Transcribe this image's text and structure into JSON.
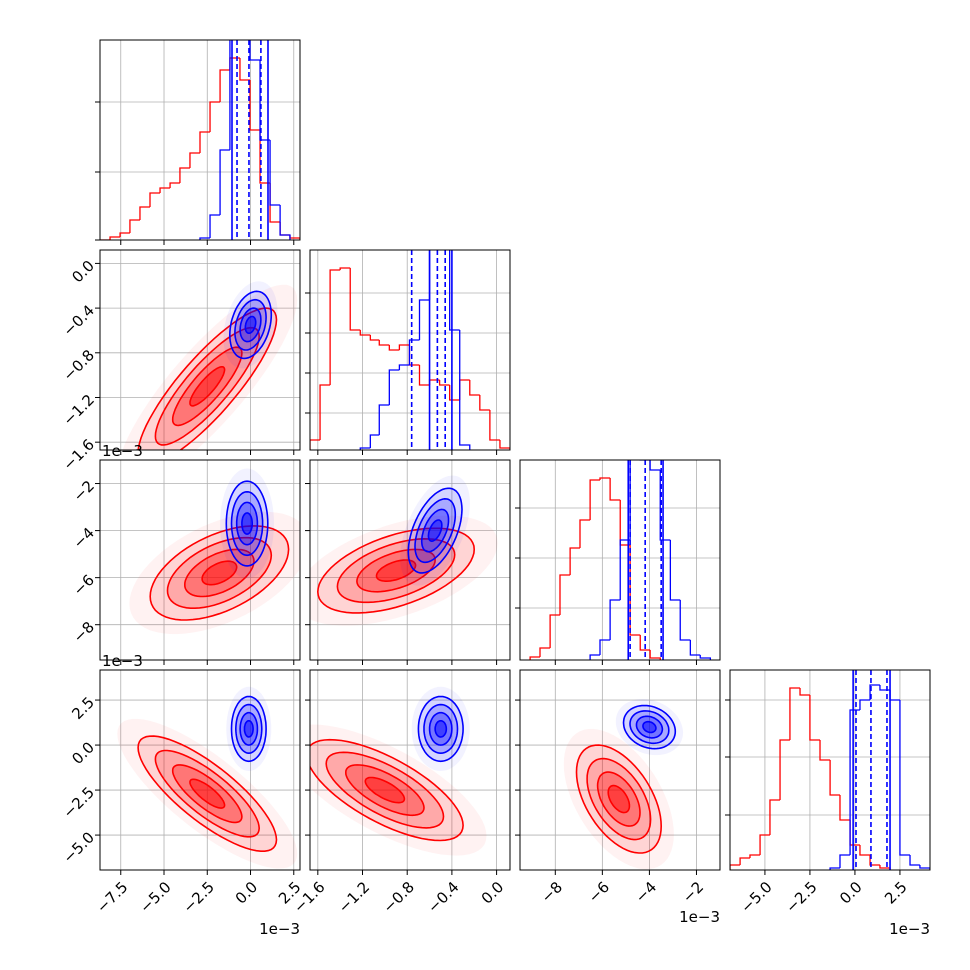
{
  "chart_data": {
    "type": "corner",
    "grid": true,
    "hist_ylim": [
      0,
      200
    ],
    "params": [
      {
        "lim": [
          -8.7,
          2.86
        ],
        "offset_label": "1e−3",
        "ticks": [
          {
            "value": -7.5,
            "label": "−7.5"
          },
          {
            "value": -5.0,
            "label": "−5.0"
          },
          {
            "value": -2.5,
            "label": "−2.5"
          },
          {
            "value": 0.0,
            "label": "0.0"
          },
          2.5
        ],
        "hist_yticks": [
          0,
          68,
          138
        ],
        "hists": [
          {
            "color": "#ff0000",
            "bins": [
              -8.7,
              -8.12,
              -7.54,
              -6.97,
              -6.39,
              -5.81,
              -5.23,
              -4.65,
              -4.08,
              -3.5,
              -2.92,
              -2.34,
              -1.76,
              -1.19,
              -0.61,
              -0.03,
              0.55,
              1.13,
              1.71,
              2.28,
              2.86
            ],
            "values": [
              0,
              3,
              7,
              20,
              33,
              47,
              52,
              57,
              72,
              87,
              108,
              138,
              170,
              182,
              160,
              110,
              57,
              18,
              5,
              2
            ]
          },
          {
            "color": "#0000ff",
            "bins": [
              -2.92,
              -2.34,
              -1.76,
              -1.19,
              -0.61,
              -0.03,
              0.55,
              1.13,
              1.71,
              2.28
            ],
            "values": [
              2,
              25,
              90,
              205,
              215,
              180,
              100,
              35,
              5
            ]
          }
        ],
        "lines": [
          {
            "color": "#0000ff",
            "style": "dashed",
            "values": [
              -0.78,
              -0.09,
              0.6
            ]
          },
          {
            "color": "#0000ff",
            "style": "solid",
            "values": [
              -1.07,
              1.01
            ]
          }
        ]
      },
      {
        "lim": [
          -1.67,
          0.12
        ],
        "ticks": [
          {
            "value": -1.6,
            "label": "−1.6"
          },
          {
            "value": -1.2,
            "label": "−1.2"
          },
          {
            "value": -0.8,
            "label": "−0.8"
          },
          {
            "value": -0.4,
            "label": "−0.4"
          },
          {
            "value": 0.0,
            "label": "0.0"
          }
        ],
        "hist_yticks": [
          37,
          77,
          117,
          157
        ],
        "hists": [
          {
            "color": "#ff0000",
            "bins": [
              -1.67,
              -1.58,
              -1.49,
              -1.4,
              -1.31,
              -1.22,
              -1.13,
              -1.05,
              -0.96,
              -0.87,
              -0.78,
              -0.69,
              -0.6,
              -0.51,
              -0.42,
              -0.33,
              -0.24,
              -0.15,
              -0.06,
              0.03,
              0.12
            ],
            "values": [
              10,
              65,
              180,
              182,
              120,
              115,
              110,
              105,
              100,
              105,
              85,
              65,
              70,
              65,
              50,
              70,
              55,
              40,
              10,
              2
            ]
          },
          {
            "color": "#0000ff",
            "bins": [
              -1.22,
              -1.13,
              -1.05,
              -0.96,
              -0.87,
              -0.78,
              -0.69,
              -0.6,
              -0.51,
              -0.42,
              -0.33,
              -0.24
            ],
            "values": [
              2,
              15,
              45,
              80,
              85,
              110,
              150,
              210,
              215,
              120,
              5
            ]
          }
        ],
        "lines": [
          {
            "color": "#0000ff",
            "style": "dashed",
            "values": [
              -0.76,
              -0.53,
              -0.46
            ]
          },
          {
            "color": "#0000ff",
            "style": "solid",
            "values": [
              -0.6,
              -0.4
            ]
          }
        ]
      },
      {
        "lim": [
          -9.5,
          -1.0
        ],
        "offset_label": "1e−3",
        "ticks": [
          {
            "value": -8,
            "label": "−8"
          },
          {
            "value": -6,
            "label": "−6"
          },
          {
            "value": -4,
            "label": "−4"
          },
          {
            "value": -2,
            "label": "−2"
          }
        ],
        "hist_yticks": [
          52,
          102,
          152
        ],
        "hists": [
          {
            "color": "#ff0000",
            "bins": [
              -9.07,
              -8.65,
              -8.22,
              -7.8,
              -7.37,
              -6.95,
              -6.52,
              -6.1,
              -5.67,
              -5.24,
              -4.82,
              -4.39,
              -3.97,
              -3.54
            ],
            "values": [
              3,
              12,
              45,
              85,
              112,
              140,
              180,
              182,
              160,
              115,
              25,
              10,
              2
            ]
          },
          {
            "color": "#0000ff",
            "bins": [
              -6.52,
              -6.1,
              -5.67,
              -5.24,
              -4.82,
              -4.39,
              -3.97,
              -3.54,
              -3.11,
              -2.69,
              -2.26,
              -1.84,
              -1.41
            ],
            "values": [
              5,
              20,
              60,
              120,
              205,
              200,
              190,
              120,
              60,
              20,
              5,
              2
            ]
          }
        ],
        "lines": [
          {
            "color": "#0000ff",
            "style": "dashed",
            "values": [
              -4.82,
              -4.18,
              -3.5
            ]
          },
          {
            "color": "#0000ff",
            "style": "solid",
            "values": [
              -4.9,
              -3.42
            ]
          }
        ]
      },
      {
        "lim": [
          -6.94,
          4.17
        ],
        "offset_label": "1e−3",
        "ticks": [
          {
            "value": -5.0,
            "label": "−5.0"
          },
          {
            "value": -2.5,
            "label": "−2.5"
          },
          {
            "value": 0.0,
            "label": "0.0"
          },
          2.5
        ],
        "hist_yticks": [
          55,
          113,
          170
        ],
        "hists": [
          {
            "color": "#ff0000",
            "bins": [
              -6.94,
              -6.38,
              -5.83,
              -5.27,
              -4.72,
              -4.16,
              -3.61,
              -3.05,
              -2.5,
              -1.94,
              -1.38,
              -0.83,
              -0.27,
              0.28,
              0.84,
              1.39,
              1.95
            ],
            "values": [
              5,
              12,
              15,
              35,
              70,
              130,
              182,
              175,
              130,
              110,
              75,
              50,
              25,
              15,
              5,
              2
            ]
          },
          {
            "color": "#0000ff",
            "bins": [
              -1.38,
              -0.83,
              -0.27,
              0.28,
              0.84,
              1.39,
              1.95,
              2.5,
              3.06,
              3.61,
              4.17
            ],
            "values": [
              2,
              15,
              160,
              170,
              185,
              180,
              170,
              15,
              5,
              2
            ]
          }
        ],
        "lines": [
          {
            "color": "#0000ff",
            "style": "dashed",
            "values": [
              0.06,
              0.89,
              1.78
            ]
          },
          {
            "color": "#0000ff",
            "style": "solid",
            "values": [
              -0.1,
              1.95
            ]
          }
        ]
      }
    ],
    "pairs": [
      {
        "x": 0,
        "y": 1,
        "series": [
          {
            "color": "#ff0000",
            "center": [
              -2.5,
              -1.1
            ],
            "sigma": [
              2.0,
              0.35
            ],
            "rho": 0.85
          },
          {
            "color": "#0000ff",
            "center": [
              0.0,
              -0.55
            ],
            "sigma": [
              0.6,
              0.15
            ],
            "rho": 0.3
          }
        ]
      },
      {
        "x": 0,
        "y": 2,
        "series": [
          {
            "color": "#ff0000",
            "center": [
              -1.8,
              -5.8
            ],
            "sigma": [
              2.0,
              1.0
            ],
            "rho": 0.5
          },
          {
            "color": "#0000ff",
            "center": [
              -0.2,
              -3.7
            ],
            "sigma": [
              0.6,
              0.9
            ],
            "rho": 0.0
          }
        ]
      },
      {
        "x": 1,
        "y": 2,
        "series": [
          {
            "color": "#ff0000",
            "center": [
              -0.9,
              -5.7
            ],
            "sigma": [
              0.35,
              0.9
            ],
            "rho": 0.5
          },
          {
            "color": "#0000ff",
            "center": [
              -0.55,
              -4.0
            ],
            "sigma": [
              0.12,
              0.9
            ],
            "rho": 0.5
          }
        ]
      },
      {
        "x": 0,
        "y": 3,
        "series": [
          {
            "color": "#ff0000",
            "center": [
              -2.5,
              -2.7
            ],
            "sigma": [
              2.0,
              1.6
            ],
            "rho": -0.8
          },
          {
            "color": "#0000ff",
            "center": [
              -0.1,
              0.9
            ],
            "sigma": [
              0.5,
              0.9
            ],
            "rho": 0.0
          }
        ]
      },
      {
        "x": 1,
        "y": 3,
        "series": [
          {
            "color": "#ff0000",
            "center": [
              -1.0,
              -2.5
            ],
            "sigma": [
              0.35,
              1.4
            ],
            "rho": -0.7
          },
          {
            "color": "#0000ff",
            "center": [
              -0.5,
              0.9
            ],
            "sigma": [
              0.1,
              0.9
            ],
            "rho": 0.0
          }
        ]
      },
      {
        "x": 2,
        "y": 3,
        "series": [
          {
            "color": "#ff0000",
            "center": [
              -5.3,
              -3.0
            ],
            "sigma": [
              0.9,
              1.5
            ],
            "rho": -0.5
          },
          {
            "color": "#0000ff",
            "center": [
              -4.0,
              1.0
            ],
            "sigma": [
              0.55,
              0.6
            ],
            "rho": -0.2
          }
        ]
      }
    ]
  }
}
